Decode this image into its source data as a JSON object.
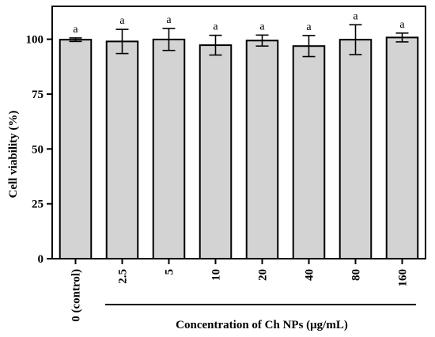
{
  "chart_data": {
    "type": "bar",
    "categories": [
      "0 (control)",
      "2.5",
      "5",
      "10",
      "20",
      "40",
      "80",
      "160"
    ],
    "values": [
      99.8,
      99.0,
      99.9,
      97.3,
      99.4,
      96.9,
      99.8,
      100.8
    ],
    "errors": [
      0.8,
      5.5,
      5.0,
      4.5,
      2.5,
      4.8,
      6.8,
      2.0
    ],
    "data_labels": [
      "a",
      "a",
      "a",
      "a",
      "a",
      "a",
      "a",
      "a"
    ],
    "title": "",
    "xlabel": "Concentration of Ch NPs (μg/mL)",
    "ylabel": "Cell viability (%)",
    "ylim": [
      0,
      115
    ],
    "yticks": [
      0,
      25,
      50,
      75,
      100
    ],
    "bar_color": "#d3d3d3",
    "edge_color": "#000000",
    "grid": false,
    "legend": "none"
  }
}
